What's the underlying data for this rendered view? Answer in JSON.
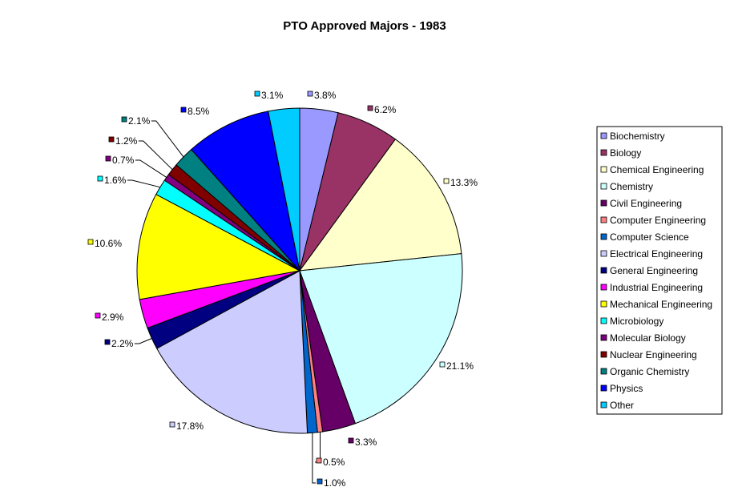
{
  "chart_data": {
    "type": "pie",
    "title": "PTO Approved Majors - 1983",
    "legend_position": "right",
    "slices": [
      {
        "name": "Biochemistry",
        "value": 3.8,
        "label": "3.8%",
        "color": "#9999ff"
      },
      {
        "name": "Biology",
        "value": 6.2,
        "label": "6.2%",
        "color": "#993366"
      },
      {
        "name": "Chemical Engineering",
        "value": 13.3,
        "label": "13.3%",
        "color": "#ffffcc"
      },
      {
        "name": "Chemistry",
        "value": 21.1,
        "label": "21.1%",
        "color": "#ccffff"
      },
      {
        "name": "Civil Engineering",
        "value": 3.3,
        "label": "3.3%",
        "color": "#660066"
      },
      {
        "name": "Computer Engineering",
        "value": 0.5,
        "label": "0.5%",
        "color": "#ff8080"
      },
      {
        "name": "Computer Science",
        "value": 1.0,
        "label": "1.0%",
        "color": "#0066cc"
      },
      {
        "name": "Electrical Engineering",
        "value": 17.8,
        "label": "17.8%",
        "color": "#ccccff"
      },
      {
        "name": "General Engineering",
        "value": 2.2,
        "label": "2.2%",
        "color": "#000080"
      },
      {
        "name": "Industrial Engineering",
        "value": 2.9,
        "label": "2.9%",
        "color": "#ff00ff"
      },
      {
        "name": "Mechanical Engineering",
        "value": 10.6,
        "label": "10.6%",
        "color": "#ffff00"
      },
      {
        "name": "Microbiology",
        "value": 1.6,
        "label": "1.6%",
        "color": "#00ffff"
      },
      {
        "name": "Molecular Biology",
        "value": 0.7,
        "label": "0.7%",
        "color": "#800080"
      },
      {
        "name": "Nuclear Engineering",
        "value": 1.2,
        "label": "1.2%",
        "color": "#800000"
      },
      {
        "name": "Organic Chemistry",
        "value": 2.1,
        "label": "2.1%",
        "color": "#008080"
      },
      {
        "name": "Physics",
        "value": 8.5,
        "label": "8.5%",
        "color": "#0000ff"
      },
      {
        "name": "Other",
        "value": 3.1,
        "label": "3.1%",
        "color": "#00ccff"
      }
    ]
  }
}
